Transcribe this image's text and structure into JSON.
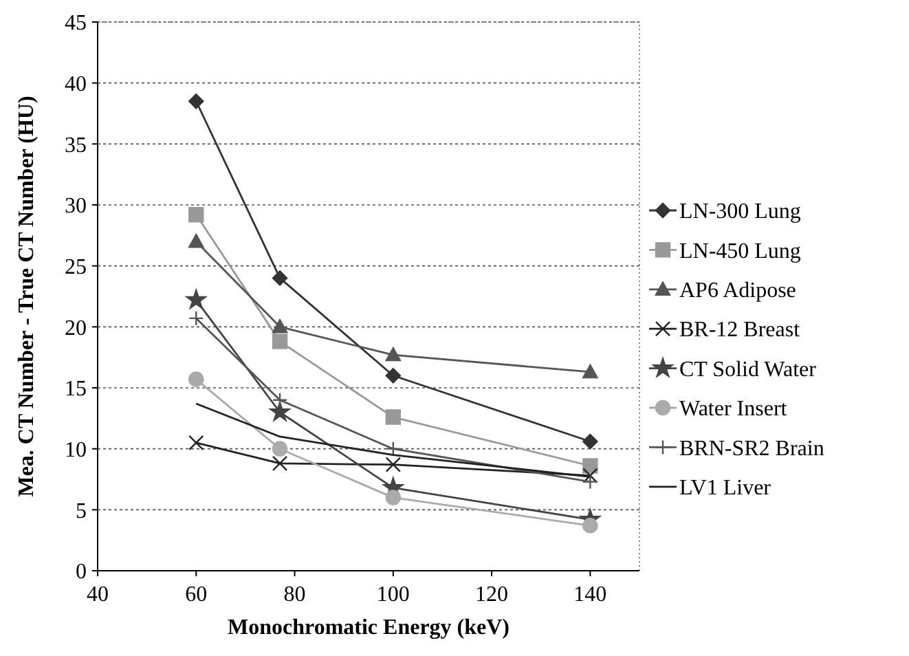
{
  "chart_data": {
    "type": "line",
    "xlabel": "Monochromatic Energy (keV)",
    "ylabel": "Mea. CT Number - True CT Number (HU)",
    "x": [
      60,
      77,
      100,
      140
    ],
    "xlim": [
      40,
      150
    ],
    "xticks": [
      40,
      60,
      80,
      100,
      120,
      140
    ],
    "ylim": [
      0,
      45
    ],
    "yticks": [
      0,
      5,
      10,
      15,
      20,
      25,
      30,
      35,
      40,
      45
    ],
    "grid": "y",
    "legend": "right",
    "line_style": "solid",
    "series": [
      {
        "name": "LN-300 Lung",
        "color": "#333333",
        "marker": "diamond",
        "values": [
          38.5,
          24,
          16,
          10.6
        ]
      },
      {
        "name": "LN-450 Lung",
        "color": "#999999",
        "marker": "square",
        "values": [
          29.2,
          18.8,
          12.6,
          8.6
        ]
      },
      {
        "name": "AP6 Adipose",
        "color": "#555555",
        "marker": "triangle",
        "values": [
          27,
          20,
          17.7,
          16.3
        ]
      },
      {
        "name": "BR-12 Breast",
        "color": "#222222",
        "marker": "cross",
        "values": [
          10.5,
          8.8,
          8.7,
          7.8
        ]
      },
      {
        "name": "CT Solid Water",
        "color": "#444444",
        "marker": "star",
        "values": [
          22.2,
          13,
          6.8,
          4.2
        ]
      },
      {
        "name": "Water Insert",
        "color": "#aaaaaa",
        "marker": "circle",
        "values": [
          15.7,
          10,
          6,
          3.7
        ]
      },
      {
        "name": "BRN-SR2 Brain",
        "color": "#555555",
        "marker": "plus",
        "values": [
          20.7,
          14,
          10,
          7.3
        ]
      },
      {
        "name": "LV1 Liver",
        "color": "#222222",
        "marker": "none",
        "values": [
          13.7,
          11,
          9.5,
          7.7
        ]
      }
    ]
  }
}
